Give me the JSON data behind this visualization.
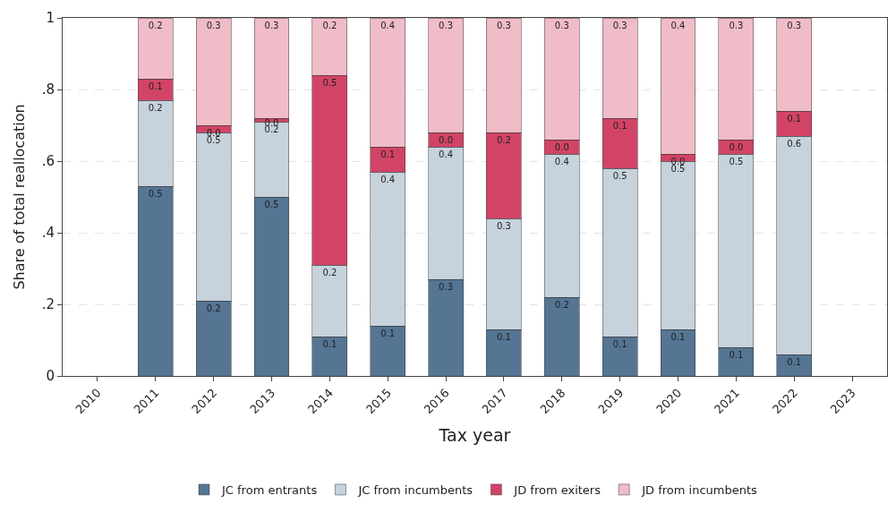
{
  "chart_data": {
    "type": "bar",
    "stacked": true,
    "xlabel": "Tax year",
    "ylabel": "Share of total reallocation",
    "categories": [
      "2010",
      "2011",
      "2012",
      "2013",
      "2014",
      "2015",
      "2016",
      "2017",
      "2018",
      "2019",
      "2020",
      "2021",
      "2022",
      "2023"
    ],
    "series": [
      {
        "name": "JC from entrants",
        "color": "#557593",
        "values": [
          null,
          0.53,
          0.21,
          0.5,
          0.11,
          0.14,
          0.27,
          0.13,
          0.22,
          0.11,
          0.13,
          0.08,
          0.06,
          null
        ],
        "value_labels": [
          null,
          "0.5",
          "0.2",
          "0.5",
          "0.1",
          "0.1",
          "0.3",
          "0.1",
          "0.2",
          "0.1",
          "0.1",
          "0.1",
          "0.1",
          null
        ]
      },
      {
        "name": "JC from incumbents",
        "color": "#c6d2dc",
        "values": [
          null,
          0.24,
          0.47,
          0.21,
          0.2,
          0.43,
          0.37,
          0.31,
          0.4,
          0.47,
          0.47,
          0.54,
          0.61,
          null
        ],
        "value_labels": [
          null,
          "0.2",
          "0.5",
          "0.2",
          "0.2",
          "0.4",
          "0.4",
          "0.3",
          "0.4",
          "0.5",
          "0.5",
          "0.5",
          "0.6",
          null
        ]
      },
      {
        "name": "JD from exiters",
        "color": "#d24466",
        "values": [
          null,
          0.06,
          0.02,
          0.01,
          0.53,
          0.07,
          0.04,
          0.24,
          0.04,
          0.14,
          0.02,
          0.04,
          0.07,
          null
        ],
        "value_labels": [
          null,
          "0.1",
          "0.0",
          "0.0",
          "0.5",
          "0.1",
          "0.0",
          "0.2",
          "0.0",
          "0.1",
          "0.0",
          "0.0",
          "0.1",
          null
        ]
      },
      {
        "name": "JD from incumbents",
        "color": "#f0bcc8",
        "values": [
          null,
          0.17,
          0.3,
          0.28,
          0.16,
          0.36,
          0.32,
          0.32,
          0.34,
          0.28,
          0.38,
          0.34,
          0.26,
          null
        ],
        "value_labels": [
          null,
          "0.2",
          "0.3",
          "0.3",
          "0.2",
          "0.4",
          "0.3",
          "0.3",
          "0.3",
          "0.3",
          "0.4",
          "0.3",
          "0.3",
          null
        ]
      }
    ],
    "ylim": [
      0,
      1
    ],
    "yticks": [
      0,
      {
        "value": 0.2,
        "label": ".2"
      },
      {
        "value": 0.4,
        "label": ".4"
      },
      {
        "value": 0.6,
        "label": ".6"
      },
      {
        "value": 0.8,
        "label": ".8"
      },
      1
    ],
    "grid": "y",
    "legend": "bottom"
  }
}
